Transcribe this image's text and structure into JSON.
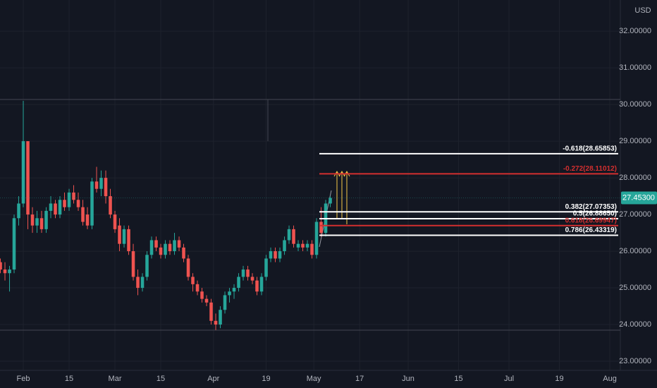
{
  "chart_data": {
    "type": "candlestick",
    "currency": "USD",
    "up_color": "#26a69a",
    "down_color": "#ef5350",
    "grid": true,
    "ylim": [
      22.75,
      32.85
    ],
    "yticks": [
      {
        "value": 23,
        "label": "23.00000"
      },
      {
        "value": 24,
        "label": "24.00000"
      },
      {
        "value": 25,
        "label": "25.00000"
      },
      {
        "value": 26,
        "label": "26.00000"
      },
      {
        "value": 27,
        "label": "27.00000"
      },
      {
        "value": 28,
        "label": "28.00000"
      },
      {
        "value": 29,
        "label": "29.00000"
      },
      {
        "value": 30,
        "label": "30.00000"
      },
      {
        "value": 31,
        "label": "31.00000"
      },
      {
        "value": 32,
        "label": "32.00000"
      }
    ],
    "xlim": [
      -0.08,
      135.3
    ],
    "xticks": [
      {
        "value": 5,
        "label": "Feb"
      },
      {
        "value": 15,
        "label": "15"
      },
      {
        "value": 25,
        "label": "Mar"
      },
      {
        "value": 35,
        "label": "15"
      },
      {
        "value": 46.5,
        "label": "Apr"
      },
      {
        "value": 58,
        "label": "19"
      },
      {
        "value": 68.4,
        "label": "May"
      },
      {
        "value": 78.4,
        "label": "17"
      },
      {
        "value": 89,
        "label": "Jun"
      },
      {
        "value": 100,
        "label": "15"
      },
      {
        "value": 111,
        "label": "Jul"
      },
      {
        "value": 122,
        "label": "19"
      },
      {
        "value": 133,
        "label": "Aug"
      }
    ],
    "ohlc": [
      [
        25.7,
        25.8,
        25.4,
        25.5
      ],
      [
        25.5,
        25.7,
        25.2,
        25.4
      ],
      [
        25.4,
        25.6,
        24.9,
        25.5
      ],
      [
        25.5,
        27.0,
        25.4,
        26.9
      ],
      [
        26.9,
        27.5,
        26.7,
        27.3
      ],
      [
        27.3,
        30.1,
        27.2,
        29.0
      ],
      [
        29.0,
        29.0,
        26.6,
        27.0
      ],
      [
        27.0,
        27.2,
        26.5,
        26.7
      ],
      [
        26.7,
        27.1,
        26.5,
        26.9
      ],
      [
        26.9,
        27.1,
        26.5,
        26.6
      ],
      [
        26.6,
        27.2,
        26.5,
        27.1
      ],
      [
        27.1,
        27.5,
        26.9,
        27.3
      ],
      [
        27.3,
        27.4,
        26.9,
        27.0
      ],
      [
        27.0,
        27.5,
        26.9,
        27.4
      ],
      [
        27.4,
        27.6,
        27.1,
        27.2
      ],
      [
        27.2,
        27.7,
        27.1,
        27.6
      ],
      [
        27.6,
        27.8,
        27.3,
        27.4
      ],
      [
        27.4,
        27.6,
        27.1,
        27.2
      ],
      [
        27.2,
        27.4,
        26.7,
        26.8
      ],
      [
        27.0,
        27.2,
        26.6,
        26.7
      ],
      [
        26.7,
        28.0,
        26.6,
        27.9
      ],
      [
        27.9,
        28.3,
        27.6,
        27.7
      ],
      [
        27.7,
        28.2,
        27.5,
        28.0
      ],
      [
        28.0,
        28.2,
        27.3,
        27.5
      ],
      [
        27.5,
        27.7,
        26.9,
        27.0
      ],
      [
        27.0,
        27.1,
        26.5,
        26.6
      ],
      [
        26.7,
        26.9,
        26.0,
        26.2
      ],
      [
        26.2,
        26.7,
        26.1,
        26.6
      ],
      [
        26.6,
        26.7,
        25.9,
        26.0
      ],
      [
        26.0,
        26.2,
        25.2,
        25.3
      ],
      [
        25.3,
        25.5,
        24.8,
        25.0
      ],
      [
        25.0,
        25.4,
        24.9,
        25.3
      ],
      [
        25.3,
        26.0,
        25.2,
        25.9
      ],
      [
        25.9,
        26.4,
        25.8,
        26.3
      ],
      [
        26.3,
        26.4,
        26.0,
        26.1
      ],
      [
        26.1,
        26.2,
        25.8,
        25.9
      ],
      [
        25.9,
        26.3,
        25.8,
        26.2
      ],
      [
        26.2,
        26.3,
        25.9,
        26.0
      ],
      [
        26.0,
        26.5,
        25.9,
        26.3
      ],
      [
        26.3,
        26.4,
        26.0,
        26.1
      ],
      [
        26.1,
        26.2,
        25.7,
        25.8
      ],
      [
        25.8,
        25.9,
        25.2,
        25.3
      ],
      [
        25.3,
        25.4,
        24.9,
        25.1
      ],
      [
        25.1,
        25.2,
        24.8,
        24.9
      ],
      [
        24.9,
        25.0,
        24.6,
        24.7
      ],
      [
        24.7,
        24.8,
        24.5,
        24.6
      ],
      [
        24.6,
        24.7,
        24.0,
        24.1
      ],
      [
        24.1,
        24.3,
        23.85,
        24.0
      ],
      [
        24.0,
        24.5,
        23.9,
        24.4
      ],
      [
        24.4,
        24.9,
        24.3,
        24.8
      ],
      [
        24.8,
        25.0,
        24.6,
        24.9
      ],
      [
        24.9,
        25.1,
        24.7,
        25.0
      ],
      [
        25.0,
        25.4,
        24.9,
        25.3
      ],
      [
        25.3,
        25.6,
        25.2,
        25.5
      ],
      [
        25.5,
        25.6,
        25.2,
        25.3
      ],
      [
        25.3,
        25.4,
        25.1,
        25.2
      ],
      [
        25.2,
        25.3,
        24.8,
        24.9
      ],
      [
        24.9,
        25.4,
        24.8,
        25.3
      ],
      [
        25.3,
        25.9,
        25.2,
        25.8
      ],
      [
        25.8,
        26.1,
        25.7,
        26.0
      ],
      [
        26.0,
        26.1,
        25.7,
        25.8
      ],
      [
        25.8,
        26.1,
        25.7,
        26.0
      ],
      [
        26.0,
        26.4,
        25.9,
        26.3
      ],
      [
        26.3,
        26.7,
        26.2,
        26.6
      ],
      [
        26.6,
        26.7,
        26.1,
        26.2
      ],
      [
        26.1,
        26.3,
        26.0,
        26.2
      ],
      [
        26.2,
        26.3,
        26.0,
        26.1
      ],
      [
        26.1,
        26.3,
        26.0,
        26.2
      ],
      [
        26.2,
        26.3,
        25.8,
        25.9
      ],
      [
        25.9,
        26.9,
        25.8,
        26.8
      ],
      [
        26.8,
        27.2,
        26.4,
        26.5
      ],
      [
        26.5,
        27.4,
        26.4,
        27.3
      ],
      [
        27.3,
        27.5,
        27.2,
        27.453
      ]
    ],
    "last_price": 27.453,
    "last_price_label": "27.45300",
    "levels": [
      {
        "label": "-0.618(28.65853)",
        "value": 28.65853,
        "color": "#ffffff"
      },
      {
        "label": "-0.272(28.11012)",
        "value": 28.11012,
        "color": "#d32f2f"
      },
      {
        "label": "0.382(27.07353)",
        "value": 27.07353,
        "color": "#ffffff"
      },
      {
        "label": "0.5(26.88650)",
        "value": 26.8865,
        "color": "#ffffff"
      },
      {
        "label": "0.618(26.69947)",
        "value": 26.69947,
        "color": "#d32f2f"
      },
      {
        "label": "0.786(26.43319)",
        "value": 26.43319,
        "color": "#ffffff"
      }
    ]
  }
}
